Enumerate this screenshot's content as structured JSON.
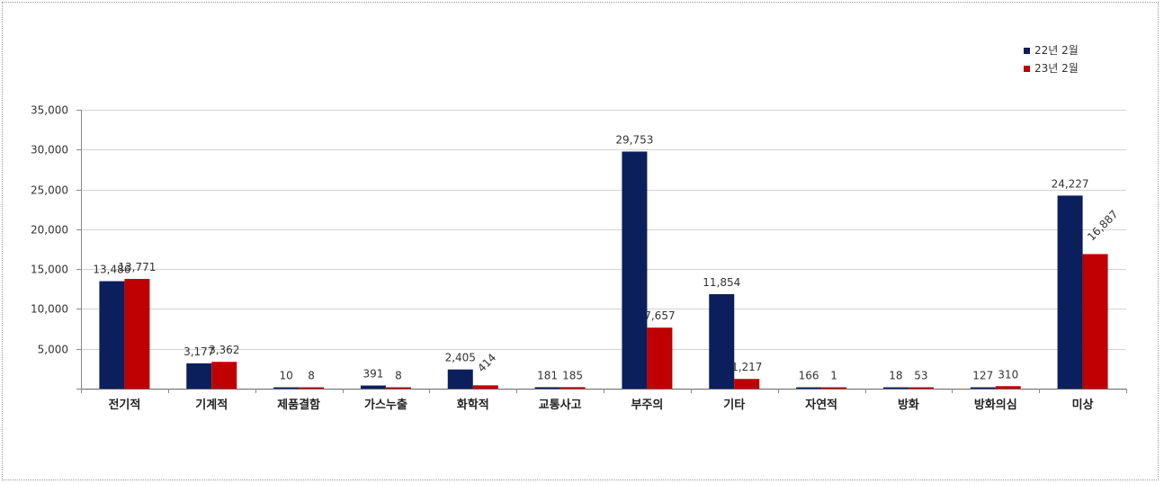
{
  "chart_data": {
    "type": "bar",
    "categories": [
      "전기적",
      "기계적",
      "제품결함",
      "가스누출",
      "화학적",
      "교통사고",
      "부주의",
      "기타",
      "자연적",
      "방화",
      "방화의심",
      "미상"
    ],
    "series": [
      {
        "name": "22년 2월",
        "color": "#0b1f5c",
        "values": [
          13486,
          3177,
          10,
          391,
          2405,
          181,
          29753,
          11854,
          166,
          18,
          127,
          24227
        ],
        "labels": [
          "13,486",
          "3,177",
          "10",
          "391",
          "2,405",
          "181",
          "29,753",
          "11,854",
          "166",
          "18",
          "127",
          "24,227"
        ]
      },
      {
        "name": "23년 2월",
        "color": "#c00000",
        "values": [
          13771,
          3362,
          8,
          8,
          414,
          185,
          7657,
          1217,
          1,
          53,
          310,
          16887
        ],
        "labels": [
          "13,771",
          "3,362",
          "8",
          "8",
          "414",
          "185",
          "7,657",
          "1,217",
          "1",
          "53",
          "310",
          "16,887"
        ]
      }
    ],
    "ylim": [
      0,
      35000
    ],
    "yticks": [
      0,
      5000,
      10000,
      15000,
      20000,
      25000,
      30000,
      35000
    ],
    "ytick_labels": [
      "",
      "5,000",
      "10,000",
      "15,000",
      "20,000",
      "25,000",
      "30,000",
      "35,000"
    ],
    "rotated_labels": [
      [
        0,
        0
      ],
      [
        0,
        0
      ],
      [
        0,
        0
      ],
      [
        0,
        0
      ],
      [
        0,
        1
      ],
      [
        0,
        0
      ],
      [
        0,
        0
      ],
      [
        0,
        0
      ],
      [
        0,
        0
      ],
      [
        0,
        0
      ],
      [
        0,
        0
      ],
      [
        0,
        1
      ]
    ],
    "grid": true,
    "legend": "top-right"
  }
}
